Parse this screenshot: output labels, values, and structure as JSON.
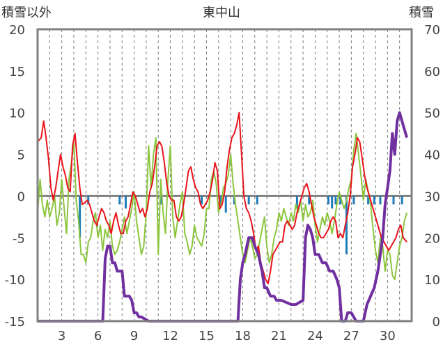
{
  "chart_data": {
    "type": "line",
    "title": "東中山",
    "left_axis_label": "積雪以外",
    "right_axis_label": "積雪",
    "ylim_left": [
      -15,
      20
    ],
    "ylim_right": [
      0,
      70
    ],
    "left_ticks": [
      -15,
      -10,
      -5,
      0,
      5,
      10,
      15,
      20
    ],
    "right_ticks": [
      0,
      10,
      20,
      30,
      40,
      50,
      60,
      70
    ],
    "xlim": [
      1,
      32
    ],
    "x_ticks": [
      3,
      6,
      9,
      12,
      15,
      18,
      21,
      24,
      27,
      30
    ],
    "x_tick_labels": [
      "3",
      "6",
      "9",
      "12",
      "15",
      "18",
      "21",
      "24",
      "27",
      "30"
    ],
    "grid": {
      "vertical_dashed_daily": true
    },
    "colors": {
      "temperature": "#e8141c",
      "precipitation_like": "#8cc63f",
      "bars": "#1f7bb8",
      "snow_depth": "#7030a0",
      "zero_line": "#808080",
      "frame": "#808080"
    },
    "series": [
      {
        "axis": "left",
        "color": "#e8141c",
        "x": [
          1.0,
          1.3,
          1.5,
          1.7,
          1.9,
          2.1,
          2.3,
          2.5,
          2.7,
          2.9,
          3.1,
          3.3,
          3.5,
          3.7,
          3.9,
          4.1,
          4.3,
          4.5,
          4.7,
          4.9,
          5.1,
          5.3,
          5.5,
          5.7,
          5.9,
          6.1,
          6.3,
          6.5,
          6.7,
          6.9,
          7.1,
          7.3,
          7.5,
          7.7,
          7.9,
          8.1,
          8.3,
          8.5,
          8.7,
          8.9,
          9.1,
          9.3,
          9.5,
          9.7,
          9.9,
          10.1,
          10.3,
          10.5,
          10.7,
          10.9,
          11.1,
          11.3,
          11.5,
          11.7,
          11.9,
          12.1,
          12.3,
          12.5,
          12.7,
          12.9,
          13.1,
          13.3,
          13.5,
          13.7,
          13.9,
          14.1,
          14.3,
          14.5,
          14.7,
          14.9,
          15.1,
          15.3,
          15.5,
          15.7,
          15.9,
          16.1,
          16.3,
          16.5,
          16.7,
          16.9,
          17.1,
          17.3,
          17.5,
          17.7,
          17.9,
          18.1,
          18.3,
          18.5,
          18.7,
          18.9,
          19.1,
          19.3,
          19.5,
          19.7,
          19.9,
          20.1,
          20.3,
          20.5,
          20.7,
          20.9,
          21.1,
          21.3,
          21.5,
          21.7,
          21.9,
          22.1,
          22.3,
          22.5,
          22.7,
          22.9,
          23.1,
          23.3,
          23.5,
          23.7,
          23.9,
          24.1,
          24.3,
          24.5,
          24.7,
          24.9,
          25.1,
          25.3,
          25.5,
          25.7,
          25.9,
          26.1,
          26.3,
          26.5,
          26.7,
          26.9,
          27.1,
          27.3,
          27.5,
          27.7,
          27.9,
          28.1,
          28.3,
          28.5,
          28.7,
          28.9,
          29.1,
          29.3,
          29.5,
          29.7,
          29.9,
          30.1,
          30.3,
          30.5,
          30.7,
          30.9,
          31.1,
          31.3,
          31.6
        ],
        "y": [
          6.5,
          7.0,
          9.0,
          7.0,
          4.5,
          1.0,
          -0.5,
          1.0,
          3.0,
          5.0,
          3.5,
          2.5,
          1.0,
          0.5,
          6.0,
          7.5,
          4.0,
          1.0,
          -1.0,
          -0.8,
          -0.5,
          -1.0,
          -2.0,
          -3.0,
          -3.5,
          -2.5,
          -1.5,
          -2.0,
          -3.0,
          -3.5,
          -4.5,
          -3.0,
          -2.0,
          -3.5,
          -4.5,
          -4.5,
          -3.0,
          -2.5,
          -1.0,
          0.5,
          0.0,
          -1.0,
          -2.0,
          -1.5,
          -2.5,
          -1.5,
          0.5,
          1.5,
          3.5,
          6.0,
          6.5,
          6.0,
          4.0,
          1.5,
          0.0,
          -0.5,
          -0.5,
          -2.5,
          -3.0,
          -2.5,
          -1.0,
          1.0,
          3.0,
          3.5,
          2.0,
          1.0,
          0.5,
          -1.0,
          -1.5,
          -1.0,
          -0.5,
          0.5,
          2.0,
          4.0,
          3.0,
          -1.5,
          -1.0,
          0.5,
          3.5,
          5.5,
          7.0,
          7.5,
          8.5,
          10.0,
          5.0,
          0.0,
          -1.5,
          -2.0,
          -3.0,
          -4.5,
          -6.5,
          -6.0,
          -8.0,
          -9.0,
          -10.0,
          -10.5,
          -9.0,
          -7.0,
          -6.5,
          -6.0,
          -5.5,
          -5.5,
          -3.5,
          -3.0,
          -3.5,
          -4.0,
          -3.5,
          -2.0,
          -1.0,
          0.0,
          1.0,
          1.5,
          0.5,
          -1.0,
          -2.5,
          -3.5,
          -4.5,
          -5.0,
          -5.0,
          -4.5,
          -4.0,
          -3.0,
          -2.5,
          -3.0,
          -5.0,
          -4.5,
          -5.0,
          -3.5,
          -2.0,
          0.0,
          3.5,
          5.0,
          7.0,
          6.5,
          4.5,
          2.5,
          1.0,
          0.0,
          -1.0,
          -2.0,
          -3.0,
          -4.0,
          -5.0,
          -5.5,
          -6.0,
          -6.5,
          -6.0,
          -5.5,
          -5.0,
          -4.0,
          -3.5,
          -5.0,
          -5.5
        ]
      },
      {
        "axis": "left",
        "color": "#8cc63f",
        "x": [
          1.0,
          1.2,
          1.4,
          1.6,
          1.8,
          2.0,
          2.2,
          2.4,
          2.6,
          2.8,
          3.0,
          3.2,
          3.4,
          3.6,
          3.8,
          4.0,
          4.2,
          4.4,
          4.6,
          4.8,
          5.0,
          5.2,
          5.4,
          5.6,
          5.8,
          6.0,
          6.2,
          6.4,
          6.6,
          6.8,
          7.0,
          7.2,
          7.4,
          7.6,
          7.8,
          8.0,
          8.2,
          8.4,
          8.6,
          8.8,
          9.0,
          9.2,
          9.4,
          9.6,
          9.8,
          10.0,
          10.2,
          10.4,
          10.6,
          10.8,
          11.0,
          11.2,
          11.4,
          11.6,
          11.8,
          12.0,
          12.2,
          12.4,
          12.6,
          12.8,
          13.0,
          13.2,
          13.4,
          13.6,
          13.8,
          14.0,
          14.2,
          14.4,
          14.6,
          14.8,
          15.0,
          15.2,
          15.4,
          15.6,
          15.8,
          16.0,
          16.2,
          16.4,
          16.6,
          16.8,
          17.0,
          17.2,
          17.4,
          17.6,
          17.8,
          18.0,
          18.2,
          18.4,
          18.6,
          18.8,
          19.0,
          19.2,
          19.4,
          19.6,
          19.8,
          20.0,
          20.2,
          20.4,
          20.6,
          20.8,
          21.0,
          21.2,
          21.4,
          21.6,
          21.8,
          22.0,
          22.2,
          22.4,
          22.6,
          22.8,
          23.0,
          23.2,
          23.4,
          23.6,
          23.8,
          24.0,
          24.2,
          24.4,
          24.6,
          24.8,
          25.0,
          25.2,
          25.4,
          25.6,
          25.8,
          26.0,
          26.2,
          26.4,
          26.6,
          26.8,
          27.0,
          27.2,
          27.4,
          27.6,
          27.8,
          28.0,
          28.2,
          28.4,
          28.6,
          28.8,
          29.0,
          29.2,
          29.4,
          29.6,
          29.8,
          30.0,
          30.2,
          30.4,
          30.6,
          30.8,
          31.0,
          31.2,
          31.4,
          31.6
        ],
        "y": [
          -2.0,
          2.0,
          -1.0,
          -2.5,
          -0.5,
          -2.5,
          -1.5,
          0.0,
          -3.5,
          -2.0,
          2.0,
          -1.5,
          -4.5,
          2.0,
          4.0,
          6.5,
          -0.5,
          -3.0,
          -7.0,
          -7.0,
          -8.0,
          -5.5,
          -5.0,
          -3.0,
          -2.0,
          -5.0,
          -3.5,
          -6.5,
          -4.0,
          -5.0,
          -3.0,
          -6.0,
          -7.0,
          -6.5,
          -5.5,
          -4.0,
          -2.5,
          -4.5,
          -3.0,
          -1.5,
          0.5,
          -3.0,
          -5.0,
          -7.0,
          -6.0,
          -2.0,
          6.0,
          1.0,
          5.0,
          7.0,
          -7.0,
          2.0,
          -2.0,
          -4.5,
          2.0,
          6.0,
          -2.5,
          -5.0,
          -3.0,
          -1.0,
          0.5,
          -4.5,
          -5.5,
          -7.0,
          -6.0,
          -3.5,
          -5.0,
          -5.5,
          -6.0,
          -4.5,
          -1.5,
          -1.5,
          2.0,
          3.0,
          1.5,
          -2.0,
          -1.0,
          1.0,
          1.5,
          2.5,
          5.0,
          1.5,
          -1.0,
          -3.0,
          -5.0,
          -7.0,
          -8.0,
          -6.5,
          -5.0,
          -6.0,
          -7.5,
          -7.0,
          -5.5,
          -4.0,
          -2.5,
          -6.0,
          -8.0,
          -7.0,
          -5.0,
          -4.0,
          -2.0,
          -3.0,
          -1.5,
          -2.5,
          -3.5,
          -2.0,
          -3.0,
          -1.0,
          -2.0,
          -0.5,
          -3.0,
          -1.0,
          -2.5,
          -2.0,
          -0.5,
          -3.5,
          -5.5,
          -4.0,
          -2.5,
          -3.5,
          -2.0,
          -3.0,
          -4.5,
          -3.0,
          -1.0,
          0.5,
          -0.5,
          -1.5,
          -0.5,
          1.0,
          2.0,
          5.5,
          7.5,
          5.0,
          2.5,
          -0.5,
          2.0,
          0.5,
          -1.0,
          -4.0,
          -6.5,
          -8.0,
          -5.0,
          -6.0,
          -9.0,
          -6.5,
          -7.0,
          -9.5,
          -10.0,
          -8.0,
          -6.0,
          -5.0,
          -3.0,
          -2.0
        ]
      },
      {
        "axis": "left",
        "color": "#1f7bb8",
        "type": "bar",
        "x": [
          4.5,
          5.2,
          7.8,
          8.3,
          11.2,
          14.6,
          16.2,
          16.6,
          17.3,
          18.5,
          19.2,
          22.5,
          23.5,
          25.1,
          25.4,
          25.7,
          26.1,
          26.6,
          27.2,
          28.4,
          28.9,
          29.4,
          30.5,
          31.2
        ],
        "y": [
          -5.0,
          -1.0,
          -1.0,
          -1.5,
          -1.0,
          -1.0,
          -1.0,
          -2.0,
          -1.0,
          -1.0,
          -1.0,
          -1.5,
          -1.0,
          -1.0,
          -1.5,
          -1.0,
          -1.0,
          -7.0,
          -1.0,
          -1.0,
          -1.0,
          -1.0,
          -1.0,
          -1.0
        ]
      },
      {
        "axis": "right",
        "color": "#7030a0",
        "x": [
          1.0,
          6.4,
          6.6,
          6.8,
          7.0,
          7.2,
          7.4,
          7.6,
          8.0,
          8.2,
          8.4,
          8.6,
          8.8,
          9.0,
          9.2,
          9.4,
          9.6,
          10.2,
          10.6,
          10.8,
          17.6,
          17.8,
          18.0,
          18.2,
          18.5,
          18.8,
          19.0,
          19.3,
          19.6,
          19.8,
          20.0,
          20.3,
          20.6,
          20.8,
          21.0,
          21.2,
          22.0,
          22.4,
          23.0,
          23.2,
          23.4,
          23.6,
          23.8,
          24.0,
          24.3,
          24.6,
          24.9,
          25.2,
          25.5,
          25.8,
          26.0,
          26.2,
          26.5,
          26.7,
          27.0,
          27.4,
          28.0,
          28.3,
          28.6,
          28.9,
          29.2,
          29.4,
          29.6,
          29.8,
          30.0,
          30.2,
          30.4,
          30.6,
          30.8,
          31.0,
          31.2,
          31.4,
          31.6
        ],
        "y": [
          0,
          0,
          15,
          18,
          18,
          14,
          14,
          12,
          12,
          6,
          6,
          6,
          5,
          2,
          2,
          1,
          1,
          0,
          0,
          0,
          0,
          10,
          14,
          16,
          20,
          20,
          18,
          16,
          12,
          8,
          8,
          6,
          6,
          5,
          5,
          5,
          4,
          4,
          5,
          20,
          23,
          22,
          20,
          16,
          16,
          14,
          14,
          12,
          12,
          10,
          8,
          0,
          0,
          2,
          2,
          0,
          0,
          4,
          6,
          8,
          12,
          16,
          20,
          28,
          32,
          36,
          45,
          40,
          48,
          50,
          48,
          46,
          44
        ]
      }
    ]
  }
}
